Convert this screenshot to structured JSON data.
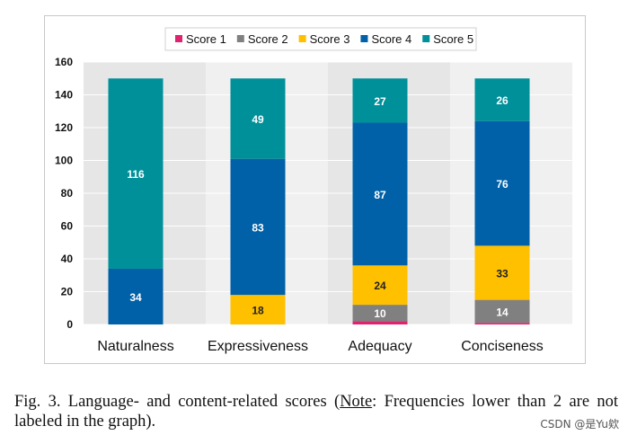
{
  "chart_data": {
    "type": "bar",
    "stacked": true,
    "title": "",
    "xlabel": "",
    "ylabel": "",
    "ylim": [
      0,
      160
    ],
    "yticks": [
      0,
      20,
      40,
      60,
      80,
      100,
      120,
      140,
      160
    ],
    "grid": true,
    "legend_position": "top-center",
    "categories": [
      "Naturalness",
      "Expressiveness",
      "Adequacy",
      "Conciseness"
    ],
    "series": [
      {
        "name": "Score 1",
        "color": "#e0236e",
        "values": [
          0,
          0,
          2,
          1
        ],
        "labels": [
          "",
          "",
          "",
          ""
        ]
      },
      {
        "name": "Score 2",
        "color": "#808080",
        "values": [
          0,
          0,
          10,
          14
        ],
        "labels": [
          "",
          "",
          "10",
          "14"
        ]
      },
      {
        "name": "Score 3",
        "color": "#ffc000",
        "values": [
          0,
          18,
          24,
          33
        ],
        "labels": [
          "",
          "18",
          "24",
          "33"
        ]
      },
      {
        "name": "Score 4",
        "color": "#0061a8",
        "values": [
          34,
          83,
          87,
          76
        ],
        "labels": [
          "34",
          "83",
          "87",
          "76"
        ]
      },
      {
        "name": "Score 5",
        "color": "#00909a",
        "values": [
          116,
          49,
          27,
          26
        ],
        "labels": [
          "116",
          "49",
          "27",
          "26"
        ]
      }
    ]
  },
  "caption": {
    "prefix": "Fig. 3.  Language- and content-related scores (",
    "note": "Note",
    "suffix": ": Frequencies lower than 2 are not labeled in the graph)."
  },
  "watermark": "CSDN @是Yu欸",
  "colors": {
    "plot_background": "#e6e6e6",
    "band_light": "#f0f0f0",
    "grid": "#ffffff"
  }
}
